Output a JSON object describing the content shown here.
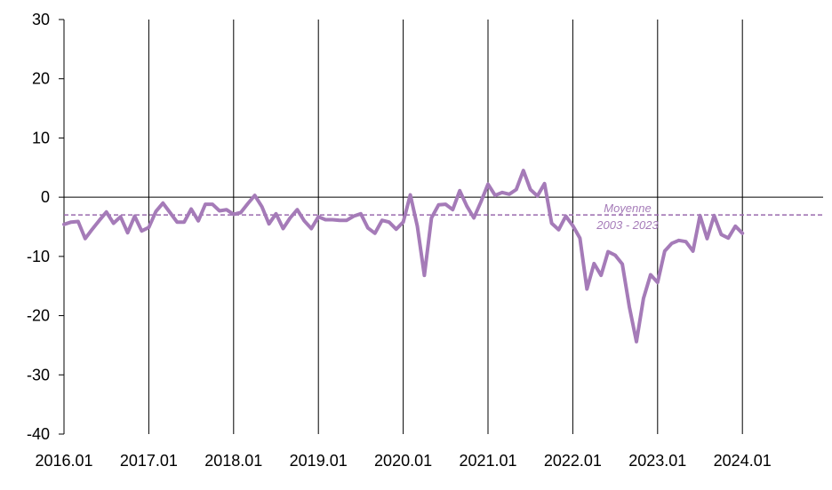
{
  "chart_data": {
    "type": "line",
    "y_ticks": [
      "30",
      "20",
      "10",
      "0",
      "-10",
      "-20",
      "-30",
      "-40"
    ],
    "x_ticks": [
      "2016.01",
      "2017.01",
      "2018.01",
      "2019.01",
      "2020.01",
      "2021.01",
      "2022.01",
      "2023.01",
      "2024.01"
    ],
    "ylim": [
      -40,
      30
    ],
    "grid": "vertical lines at each year",
    "colors": {
      "series": "#a57bb8",
      "reference": "#9b6aae",
      "axis": "#000000"
    },
    "reference_line": {
      "value": -3,
      "label_line1": "Moyenne",
      "label_line2": "2003 - 2023"
    },
    "series": [
      {
        "x": [
          "2016.01",
          "2016.02",
          "2016.03",
          "2016.04",
          "2016.05",
          "2016.06",
          "2016.07",
          "2016.08",
          "2016.09",
          "2016.10",
          "2016.11",
          "2016.12",
          "2017.01",
          "2017.02",
          "2017.03",
          "2017.04",
          "2017.05",
          "2017.06",
          "2017.07",
          "2017.08",
          "2017.09",
          "2017.10",
          "2017.11",
          "2017.12",
          "2018.01",
          "2018.02",
          "2018.03",
          "2018.04",
          "2018.05",
          "2018.06",
          "2018.07",
          "2018.08",
          "2018.09",
          "2018.10",
          "2018.11",
          "2018.12",
          "2019.01",
          "2019.02",
          "2019.03",
          "2019.04",
          "2019.05",
          "2019.06",
          "2019.07",
          "2019.08",
          "2019.09",
          "2019.10",
          "2019.11",
          "2019.12",
          "2020.01",
          "2020.02",
          "2020.03",
          "2020.04",
          "2020.05",
          "2020.06",
          "2020.07",
          "2020.08",
          "2020.09",
          "2020.10",
          "2020.11",
          "2020.12",
          "2021.01",
          "2021.02",
          "2021.03",
          "2021.04",
          "2021.05",
          "2021.06",
          "2021.07",
          "2021.08",
          "2021.09",
          "2021.10",
          "2021.11",
          "2021.12",
          "2022.01",
          "2022.02",
          "2022.03",
          "2022.04",
          "2022.05",
          "2022.06",
          "2022.07",
          "2022.08",
          "2022.09",
          "2022.10",
          "2022.11",
          "2022.12",
          "2023.01",
          "2023.02",
          "2023.03",
          "2023.04",
          "2023.05",
          "2023.06",
          "2023.07",
          "2023.08",
          "2023.09",
          "2023.10",
          "2023.11",
          "2023.12",
          "2024.01"
        ],
        "values": [
          -4.6,
          -4.2,
          -4.1,
          -7,
          -5.4,
          -3.9,
          -2.5,
          -4.4,
          -3.3,
          -6,
          -3.2,
          -5.7,
          -5.1,
          -2.4,
          -1,
          -2.6,
          -4.2,
          -4.2,
          -2,
          -4,
          -1.2,
          -1.2,
          -2.3,
          -2.1,
          -2.9,
          -2.6,
          -1.1,
          0.3,
          -1.6,
          -4.5,
          -2.8,
          -5.3,
          -3.5,
          -2.1,
          -4,
          -5.3,
          -3.3,
          -3.8,
          -3.8,
          -3.9,
          -3.9,
          -3.2,
          -2.8,
          -5.2,
          -6.1,
          -3.9,
          -4.2,
          -5.4,
          -4.2,
          0.4,
          -4.9,
          -13.2,
          -3.5,
          -1.3,
          -1.2,
          -2.1,
          1.1,
          -1.5,
          -3.5,
          -0.8,
          2.2,
          0.3,
          0.8,
          0.5,
          1.3,
          4.5,
          1.3,
          0.2,
          2.3,
          -4.4,
          -5.5,
          -3.2,
          -4.8,
          -6.9,
          -15.5,
          -11.2,
          -13.2,
          -9.2,
          -9.8,
          -11.3,
          -18.5,
          -24.4,
          -17.1,
          -13.1,
          -14.4,
          -9.1,
          -7.8,
          -7.3,
          -7.5,
          -9.1,
          -3.1,
          -7,
          -3.1,
          -6.3,
          -6.9,
          -4.9,
          -6.1
        ]
      }
    ]
  }
}
